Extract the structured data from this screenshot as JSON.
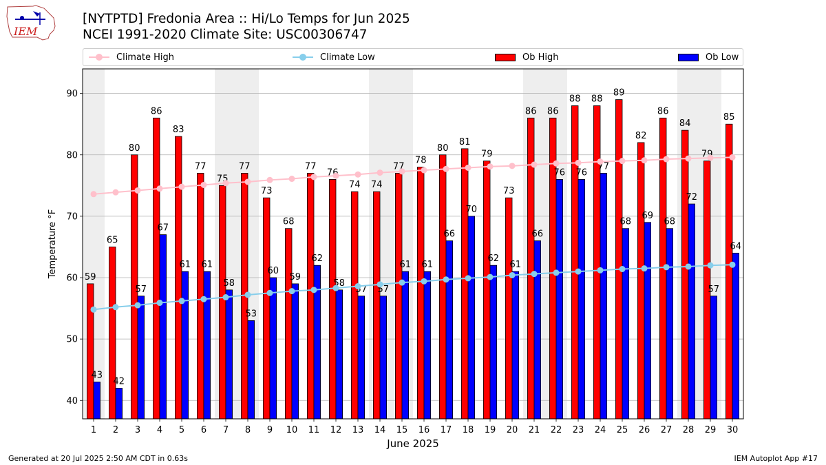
{
  "header": {
    "logo_text": "IEM",
    "title_line1": "[NYTPTD] Fredonia Area :: Hi/Lo Temps for Jun 2025",
    "title_line2": "NCEI 1991-2020 Climate Site: USC00306747"
  },
  "footer": {
    "generated": "Generated at 20 Jul 2025 2:50 AM CDT in 0.63s",
    "app": "IEM Autoplot App #17"
  },
  "colors": {
    "ob_high": "#ff0000",
    "ob_low": "#0000ff",
    "climate_high": "#ffc0cb",
    "climate_low": "#87ceeb",
    "weekend_shade": "#eeeeee",
    "grid": "#b0b0b0"
  },
  "chart_data": {
    "type": "bar",
    "xlabel": "June 2025",
    "ylabel": "Temperature °F",
    "ylim": [
      37,
      94
    ],
    "yticks": [
      40,
      50,
      60,
      70,
      80,
      90
    ],
    "grid": "horizontal",
    "legend_position": "top",
    "categories": [
      "1",
      "2",
      "3",
      "4",
      "5",
      "6",
      "7",
      "8",
      "9",
      "10",
      "11",
      "12",
      "13",
      "14",
      "15",
      "16",
      "17",
      "18",
      "19",
      "20",
      "21",
      "22",
      "23",
      "24",
      "25",
      "26",
      "27",
      "28",
      "29",
      "30"
    ],
    "shaded_days": [
      1,
      7,
      8,
      14,
      15,
      21,
      22,
      28,
      29
    ],
    "series": [
      {
        "name": "Climate High",
        "kind": "line",
        "values": [
          73.6,
          73.9,
          74.2,
          74.5,
          74.8,
          75.1,
          75.4,
          75.6,
          75.9,
          76.1,
          76.4,
          76.6,
          76.8,
          77.1,
          77.3,
          77.5,
          77.7,
          77.9,
          78.1,
          78.2,
          78.4,
          78.6,
          78.7,
          78.9,
          79.0,
          79.1,
          79.3,
          79.4,
          79.5,
          79.6
        ]
      },
      {
        "name": "Climate Low",
        "kind": "line",
        "values": [
          54.8,
          55.2,
          55.5,
          55.9,
          56.2,
          56.5,
          56.8,
          57.2,
          57.5,
          57.8,
          58.0,
          58.3,
          58.6,
          58.9,
          59.2,
          59.4,
          59.7,
          59.9,
          60.1,
          60.4,
          60.6,
          60.8,
          61.0,
          61.2,
          61.4,
          61.5,
          61.7,
          61.8,
          62.0,
          62.1
        ]
      },
      {
        "name": "Ob High",
        "kind": "bar",
        "values": [
          59,
          65,
          80,
          86,
          83,
          77,
          75,
          77,
          73,
          68,
          77,
          76,
          74,
          74,
          77,
          78,
          80,
          81,
          79,
          73,
          86,
          86,
          88,
          88,
          89,
          82,
          86,
          84,
          79,
          85
        ]
      },
      {
        "name": "Ob Low",
        "kind": "bar",
        "values": [
          43,
          42,
          57,
          67,
          61,
          61,
          58,
          53,
          60,
          59,
          62,
          58,
          57,
          57,
          61,
          61,
          66,
          70,
          62,
          61,
          66,
          76,
          76,
          77,
          68,
          69,
          68,
          72,
          57,
          64
        ]
      }
    ]
  }
}
